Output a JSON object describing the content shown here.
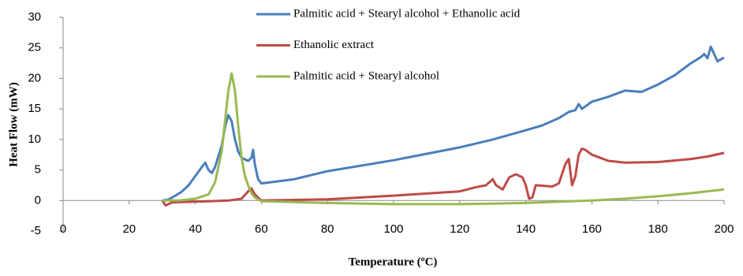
{
  "chart_data": {
    "type": "line",
    "x_label": "Temperature (ºC)",
    "y_label": "Heat Flow (mW)",
    "xlim": [
      0,
      200
    ],
    "xticks": [
      0,
      20,
      40,
      60,
      80,
      100,
      120,
      140,
      160,
      180,
      200
    ],
    "ylim": [
      -5,
      30
    ],
    "yticks": [
      -5,
      0,
      5,
      10,
      15,
      20,
      25,
      30
    ],
    "grid": false,
    "legend": "top",
    "series": [
      {
        "name": "Palmitic acid + Stearyl alcohol + Ethanolic acid",
        "color": "#4a7ebb",
        "x": [
          30,
          32,
          34,
          36,
          38,
          40,
          42,
          43,
          44,
          45,
          46,
          48,
          49,
          50,
          51,
          52,
          53,
          54,
          56,
          57,
          57.5,
          58,
          59,
          60,
          70,
          80,
          100,
          120,
          130,
          140,
          145,
          150,
          153,
          155,
          156,
          157,
          160,
          162,
          165,
          170,
          175,
          180,
          185,
          190,
          193,
          194,
          195,
          196,
          197,
          198,
          200
        ],
        "values": [
          0,
          0.2,
          0.8,
          1.5,
          2.5,
          4,
          5.5,
          6.2,
          5,
          4.5,
          5.5,
          9,
          12,
          14,
          13,
          10,
          8,
          7,
          6.5,
          7,
          8.3,
          6,
          3.5,
          2.8,
          3.5,
          4.8,
          6.6,
          8.7,
          10,
          11.5,
          12.3,
          13.5,
          14.5,
          14.8,
          15.8,
          15,
          16.2,
          16.5,
          17,
          18,
          17.8,
          19,
          20.5,
          22.5,
          23.5,
          24,
          23.3,
          25.2,
          24,
          22.8,
          23.4
        ]
      },
      {
        "name": "Ethanolic extract",
        "color": "#be4b48",
        "x": [
          30,
          31,
          33,
          40,
          50,
          54,
          56,
          57,
          58,
          60,
          80,
          100,
          120,
          125,
          128,
          130,
          131,
          133,
          135,
          137,
          139,
          140,
          141,
          142,
          143,
          148,
          150,
          152,
          153,
          154,
          155,
          156,
          157,
          158,
          160,
          165,
          170,
          180,
          190,
          195,
          200
        ],
        "values": [
          0,
          -0.8,
          -0.3,
          -0.2,
          0,
          0.3,
          1.5,
          2,
          1,
          0,
          0.2,
          0.8,
          1.5,
          2.2,
          2.5,
          3.5,
          2.5,
          1.8,
          3.8,
          4.3,
          3.8,
          2.5,
          0.3,
          0.5,
          2.5,
          2.3,
          2.8,
          6,
          6.8,
          2.5,
          4,
          7.5,
          8.5,
          8.3,
          7.5,
          6.5,
          6.2,
          6.3,
          6.8,
          7.2,
          7.8
        ]
      },
      {
        "name": "Palmitic acid + Stearyl alcohol",
        "color": "#98b954",
        "x": [
          30,
          35,
          40,
          44,
          46,
          48,
          49,
          50,
          51,
          52,
          53,
          54,
          55,
          56,
          57,
          58,
          60,
          80,
          100,
          120,
          140,
          150,
          160,
          170,
          180,
          190,
          200
        ],
        "values": [
          0,
          0,
          0.3,
          1,
          3,
          8,
          13,
          18,
          20.8,
          18,
          12,
          7,
          4,
          2.5,
          1.2,
          0.5,
          -0.1,
          -0.4,
          -0.6,
          -0.6,
          -0.4,
          -0.2,
          0,
          0.3,
          0.7,
          1.2,
          1.8
        ]
      }
    ]
  }
}
